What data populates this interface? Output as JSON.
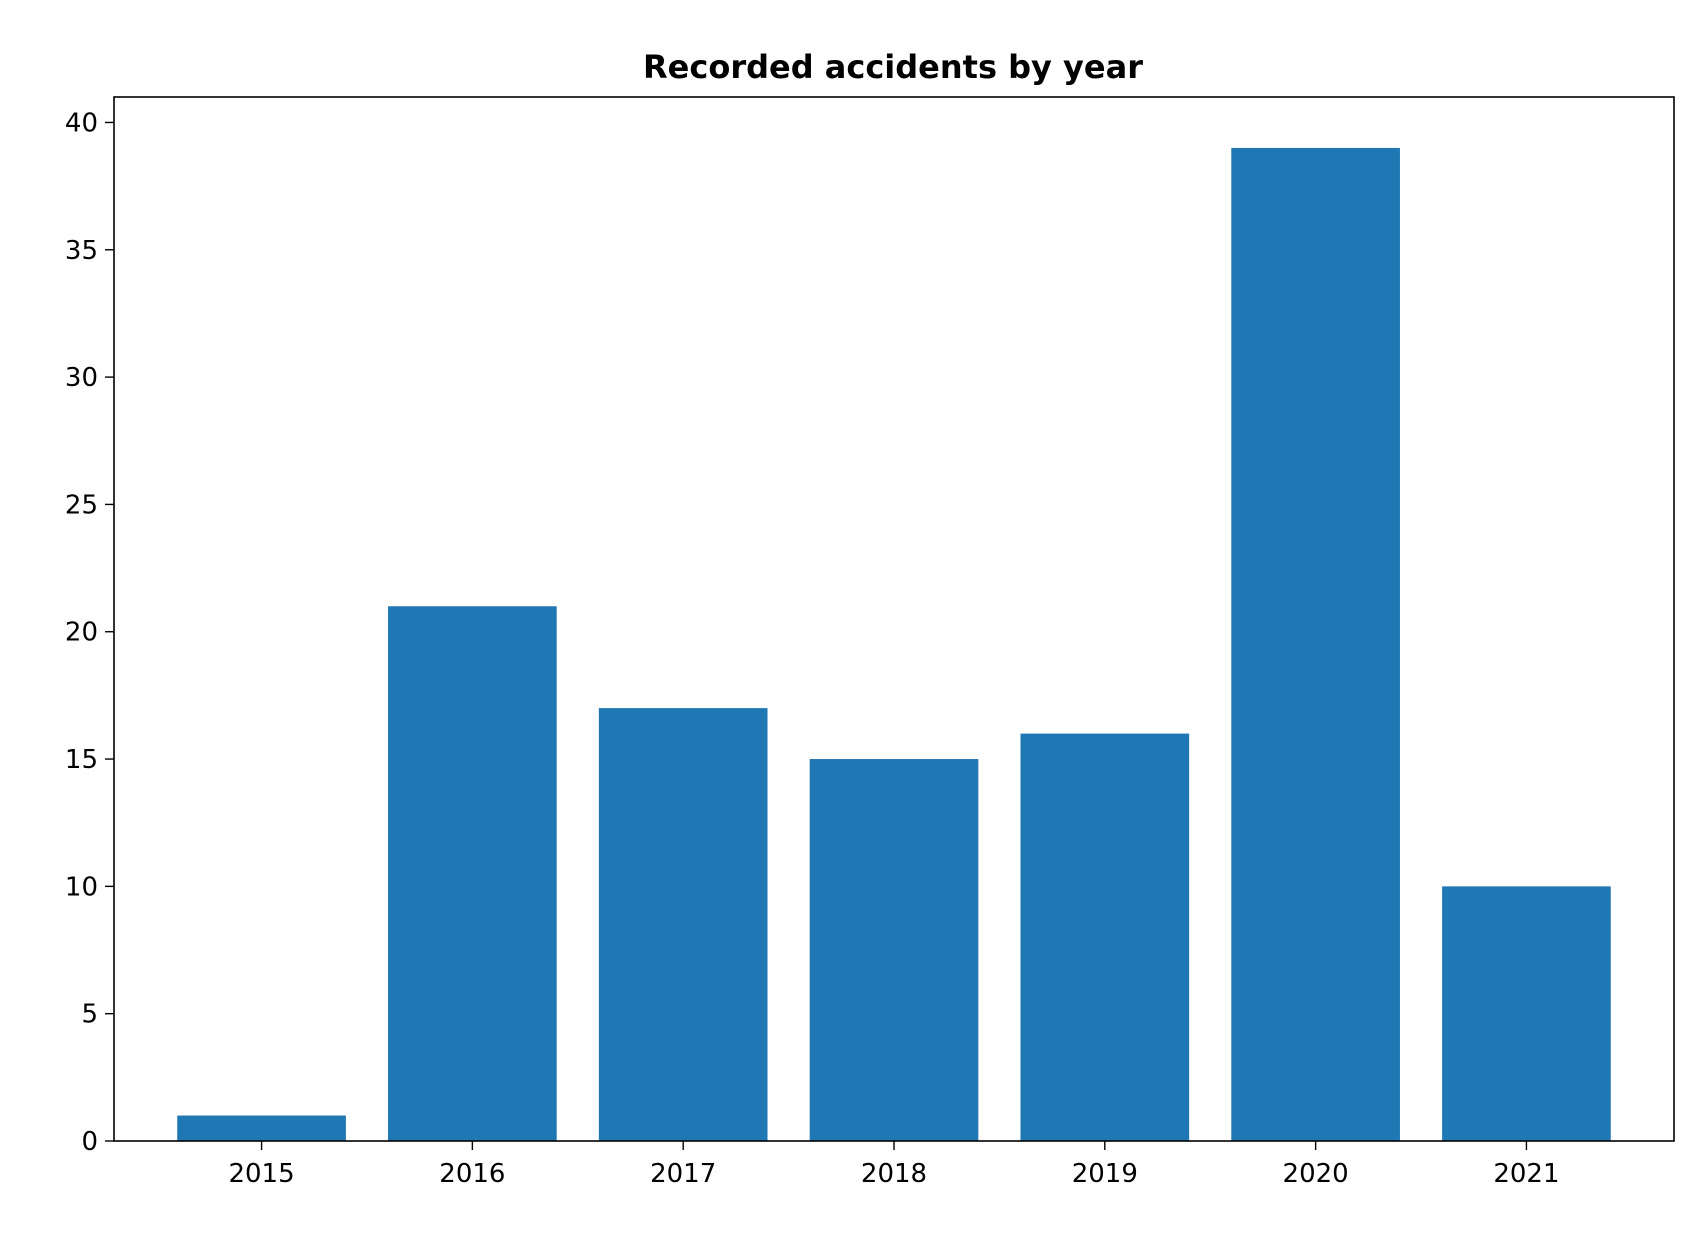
{
  "chart_data": {
    "type": "bar",
    "title": "Recorded accidents by year",
    "xlabel": "",
    "ylabel": "",
    "categories": [
      "2015",
      "2016",
      "2017",
      "2018",
      "2019",
      "2020",
      "2021"
    ],
    "values": [
      1,
      21,
      17,
      15,
      16,
      39,
      10
    ],
    "ylim": [
      0,
      41
    ],
    "yticks": [
      0,
      5,
      10,
      15,
      20,
      25,
      30,
      35,
      40
    ],
    "grid": false,
    "legend": "none",
    "colors": {
      "bar": "#1f77b4",
      "axis": "#000000",
      "background": "#ffffff"
    }
  }
}
